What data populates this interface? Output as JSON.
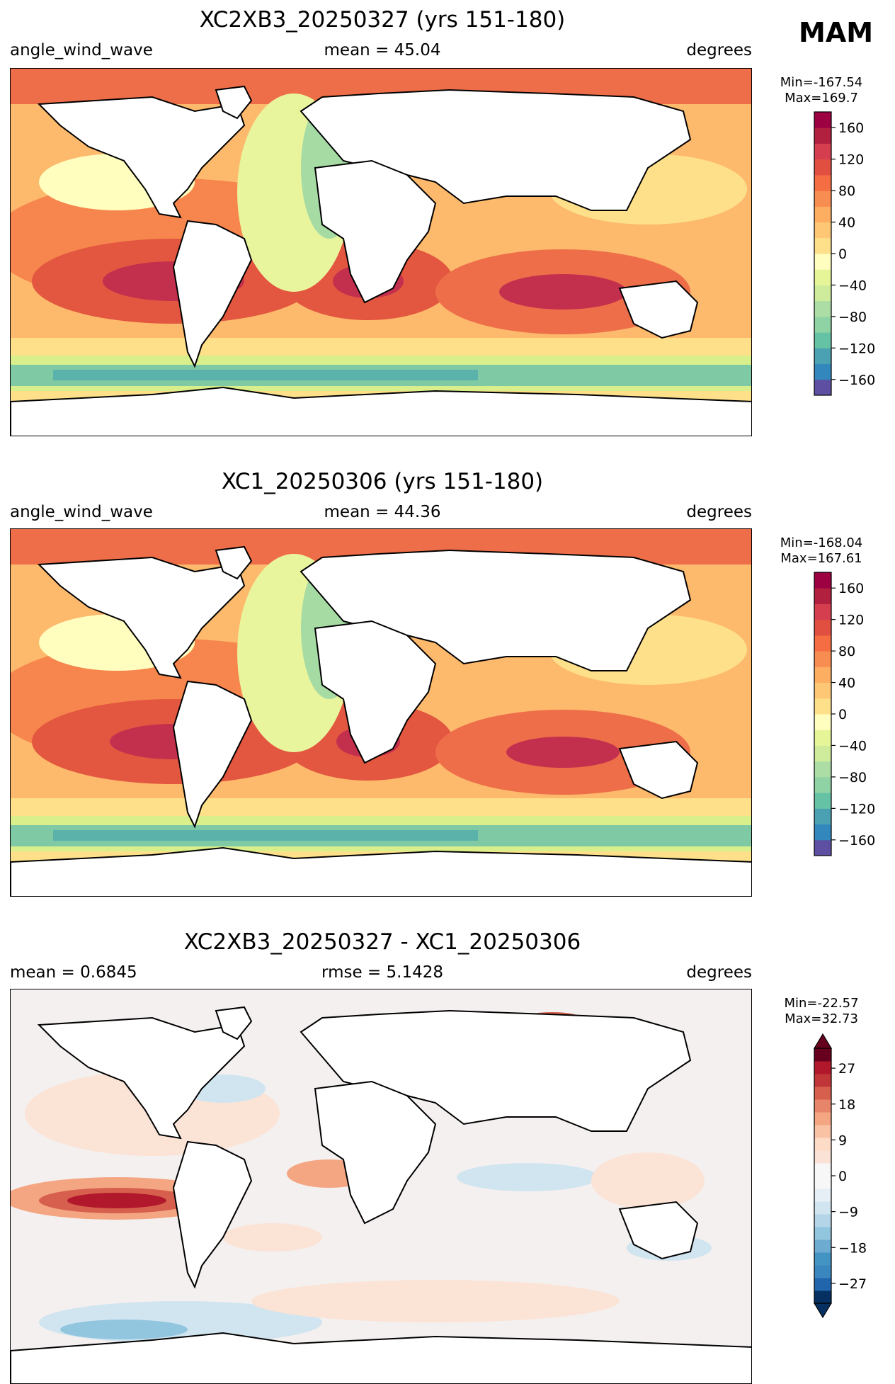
{
  "season": "MAM",
  "panels": [
    {
      "title": "XC2XB3_20250327 (yrs 151-180)",
      "left_label": "angle_wind_wave",
      "center_label": "mean = 45.04",
      "right_label": "degrees",
      "min_text": "Min=-167.54",
      "max_text": "Max=169.7",
      "colormap": "RdYlBu_r-like (Spectral_r)",
      "colorbar_ticks": [
        "160",
        "120",
        "80",
        "40",
        "0",
        "−40",
        "−80",
        "−120",
        "−160"
      ],
      "colorbar_range": [
        -180,
        180
      ]
    },
    {
      "title": "XC1_20250306 (yrs 151-180)",
      "left_label": "angle_wind_wave",
      "center_label": "mean = 44.36",
      "right_label": "degrees",
      "min_text": "Min=-168.04",
      "max_text": "Max=167.61",
      "colormap": "RdYlBu_r-like (Spectral_r)",
      "colorbar_ticks": [
        "160",
        "120",
        "80",
        "40",
        "0",
        "−40",
        "−80",
        "−120",
        "−160"
      ],
      "colorbar_range": [
        -180,
        180
      ]
    },
    {
      "title": "XC2XB3_20250327 - XC1_20250306",
      "left_label": "mean = 0.6845",
      "center_label": "rmse = 5.1428",
      "right_label": "degrees",
      "min_text": "Min=-22.57",
      "max_text": "Max=32.73",
      "colormap": "RdBu_r",
      "colorbar_ticks": [
        "27",
        "18",
        "9",
        "0",
        "−9",
        "−18",
        "−27"
      ],
      "colorbar_range": [
        -32,
        32
      ],
      "colorbar_extend": "both"
    }
  ]
}
